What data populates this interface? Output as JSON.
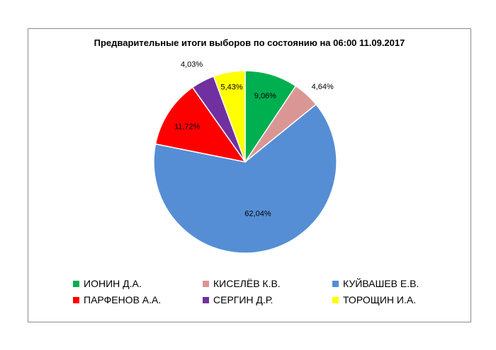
{
  "chart_data": {
    "type": "pie",
    "title": "Предварительные итоги выборов по состоянию на 06:00 11.09.2017",
    "slices": [
      {
        "name": "ИОНИН Д.А.",
        "value": 9.06,
        "label": "9,06%",
        "color": "#00b050"
      },
      {
        "name": "КИСЕЛЁВ К.В.",
        "value": 4.64,
        "label": "4,64%",
        "color": "#da9694"
      },
      {
        "name": "КУЙВАШЕВ Е.В.",
        "value": 62.04,
        "label": "62,04%",
        "color": "#558ed5"
      },
      {
        "name": "ПАРФЕНОВ А.А.",
        "value": 11.72,
        "label": "11,72%",
        "color": "#ff0000"
      },
      {
        "name": "СЕРГИН Д.Р.",
        "value": 4.03,
        "label": "4,03%",
        "color": "#7030a0"
      },
      {
        "name": "ТОРОЩИН И.А.",
        "value": 5.43,
        "label": "5,43%",
        "color": "#ffff00"
      }
    ],
    "start_angle": "12 o'clock",
    "direction": "clockwise",
    "legend_position": "bottom"
  }
}
